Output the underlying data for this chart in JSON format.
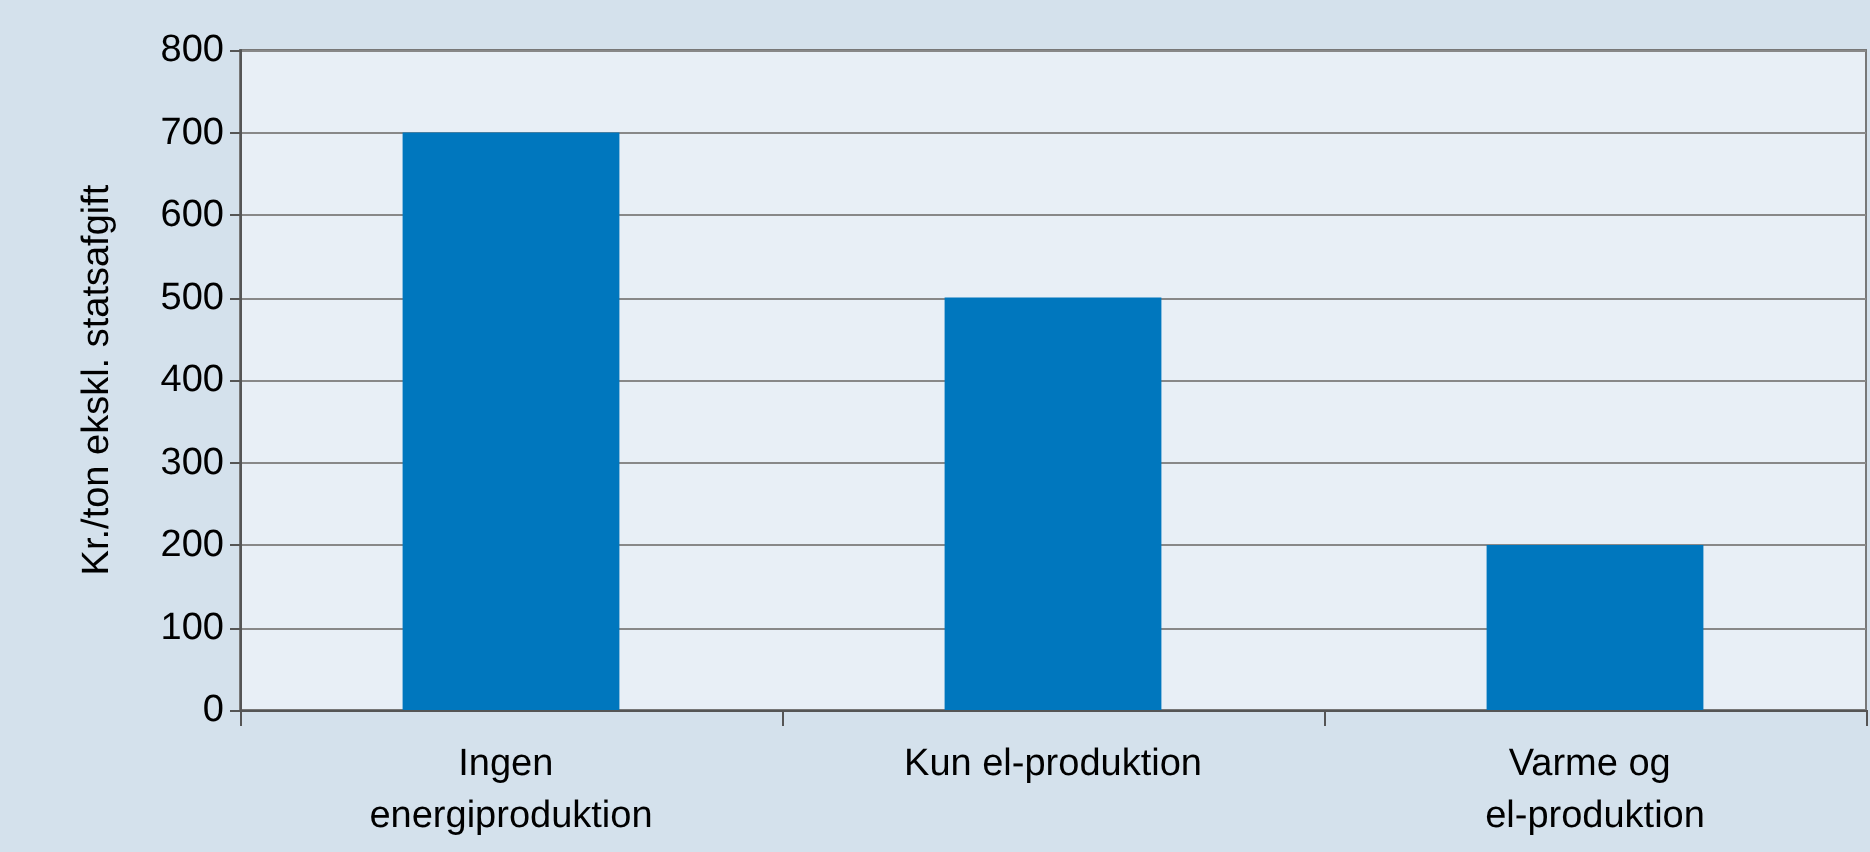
{
  "chart_data": {
    "type": "bar",
    "ylabel": "Kr./ton ekskl. statsafgift",
    "categories": [
      "Ingen energiproduktion",
      "Kun el-produktion",
      "Varme og el-produktion"
    ],
    "values": [
      700,
      500,
      200
    ],
    "color": "#0077be",
    "ylim": [
      0,
      800
    ],
    "yticks": [
      0,
      100,
      200,
      300,
      400,
      500,
      600,
      700,
      800
    ],
    "grid": "y"
  }
}
